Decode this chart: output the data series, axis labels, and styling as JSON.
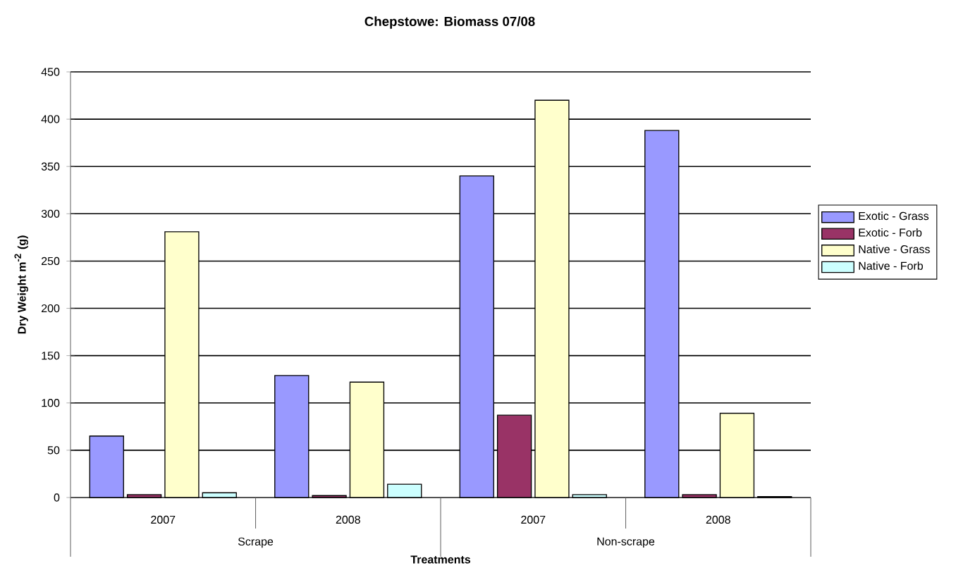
{
  "chart_data": {
    "type": "bar",
    "title": "Chepstowe: Biomass 07/08",
    "xlabel": "Treatments",
    "ylabel": "Dry Weight m$^{-2}$ (g)",
    "categories": [
      "2007",
      "2008",
      "2007",
      "2008"
    ],
    "annotations": [
      "Scrape",
      "Non-scrape"
    ],
    "series": [
      {
        "name": "Exotic - Grass",
        "color": "#9999ff",
        "values": [
          65,
          129,
          340,
          388
        ]
      },
      {
        "name": "Exotic - Forb",
        "color": "#993366",
        "values": [
          3,
          2,
          87,
          3
        ]
      },
      {
        "name": "Native - Grass",
        "color": "#ffffcc",
        "values": [
          281,
          122,
          420,
          89
        ]
      },
      {
        "name": "Native - Forb",
        "color": "#ccffff",
        "values": [
          5,
          14,
          3,
          1
        ]
      }
    ],
    "ylim": [
      0,
      450
    ],
    "yticks": [
      0,
      50,
      100,
      150,
      200,
      250,
      300,
      350,
      400,
      450
    ],
    "grid": "y",
    "legend": "right"
  }
}
